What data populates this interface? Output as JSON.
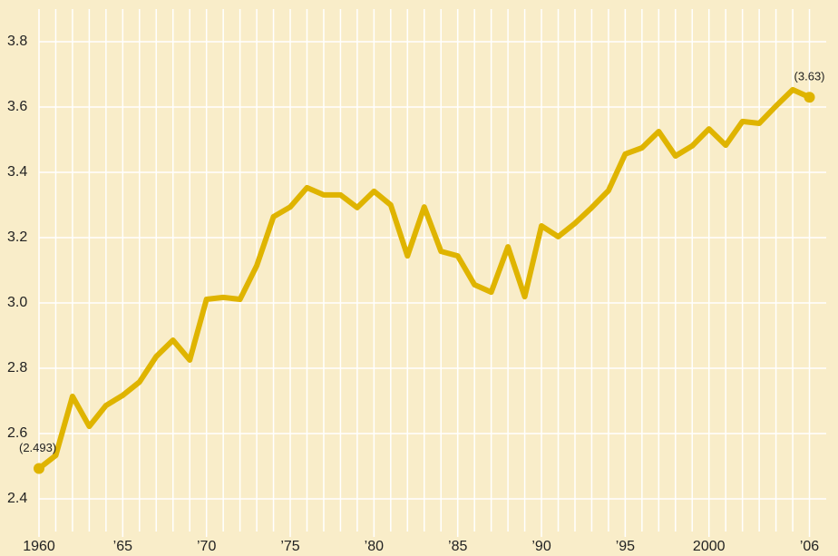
{
  "chart_data": {
    "type": "line",
    "x": [
      1960,
      1961,
      1962,
      1963,
      1964,
      1965,
      1966,
      1967,
      1968,
      1969,
      1970,
      1971,
      1972,
      1973,
      1974,
      1975,
      1976,
      1977,
      1978,
      1979,
      1980,
      1981,
      1982,
      1983,
      1984,
      1985,
      1986,
      1987,
      1988,
      1989,
      1990,
      1991,
      1992,
      1993,
      1994,
      1995,
      1996,
      1997,
      1998,
      1999,
      2000,
      2001,
      2002,
      2003,
      2004,
      2005,
      2006
    ],
    "series": [
      {
        "color": "#dfb400",
        "values": [
          2.493,
          2.533,
          2.714,
          2.622,
          2.686,
          2.717,
          2.758,
          2.836,
          2.886,
          2.825,
          3.011,
          3.017,
          3.011,
          3.114,
          3.264,
          3.294,
          3.353,
          3.331,
          3.331,
          3.292,
          3.342,
          3.3,
          3.144,
          3.294,
          3.158,
          3.144,
          3.056,
          3.033,
          3.172,
          3.019,
          3.236,
          3.203,
          3.244,
          3.292,
          3.344,
          3.456,
          3.475,
          3.525,
          3.45,
          3.481,
          3.533,
          3.483,
          3.556,
          3.55,
          3.603,
          3.653,
          3.63
        ]
      }
    ],
    "annotations": [
      "(2.493)",
      "(3.63)"
    ],
    "xlim": [
      1960,
      2007
    ],
    "xticks": [
      1960,
      {
        "value": 1965,
        "label": "’65"
      },
      {
        "value": 1970,
        "label": "’70"
      },
      {
        "value": 1975,
        "label": "’75"
      },
      {
        "value": 1980,
        "label": "’80"
      },
      {
        "value": 1985,
        "label": "’85"
      },
      {
        "value": 1990,
        "label": "’90"
      },
      {
        "value": 1995,
        "label": "’95"
      },
      2000,
      {
        "value": 2006,
        "label": "’06"
      }
    ],
    "ylim": [
      2.3,
      3.9
    ],
    "yticks": [
      {
        "value": 2.4,
        "label": "2.4"
      },
      {
        "value": 2.6,
        "label": "2.6"
      },
      {
        "value": 2.8,
        "label": "2.8"
      },
      {
        "value": 3.0,
        "label": "3.0"
      },
      {
        "value": 3.2,
        "label": "3.2"
      },
      {
        "value": 3.4,
        "label": "3.4"
      },
      {
        "value": 3.6,
        "label": "3.6"
      },
      {
        "value": 3.8,
        "label": "3.8"
      }
    ],
    "grid": true,
    "background": "#f9edc9"
  }
}
